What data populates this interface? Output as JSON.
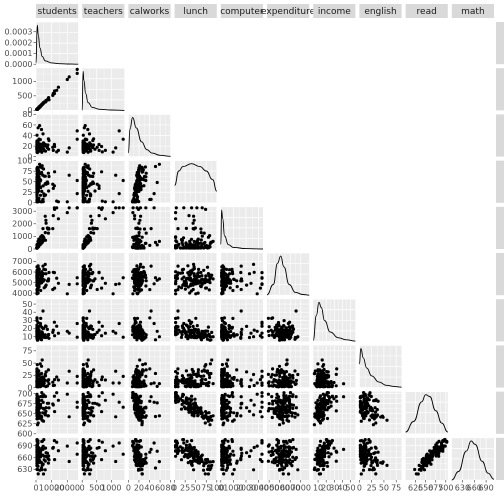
{
  "chart_data": {
    "type": "scatter",
    "title": "",
    "xlabel": "",
    "ylabel": "",
    "grid": true,
    "diagonal": "density",
    "lower": "scatter",
    "variables": [
      {
        "name": "students",
        "range": [
          0,
          27000
        ],
        "yrange": [
          0,
          0.00039
        ],
        "yticks": [
          0.0,
          0.0001,
          0.0002,
          0.0003
        ],
        "ytick_labels": [
          "0.0000",
          "0.0001",
          "0.0002",
          "0.0003"
        ],
        "xticks": [
          0,
          10000,
          20000
        ],
        "xtick_labels": [
          "0",
          "10000",
          "20000"
        ]
      },
      {
        "name": "teachers",
        "range": [
          0,
          1450
        ],
        "yticks": [
          0,
          500,
          1000,
          1500
        ],
        "ytick_labels": [
          "0",
          "500",
          "1000",
          "1500"
        ],
        "xticks": [
          0,
          500,
          1000
        ],
        "xtick_labels": [
          "0",
          "500",
          "1000"
        ]
      },
      {
        "name": "calworks",
        "range": [
          0,
          80
        ],
        "yticks": [
          0,
          20,
          40,
          60,
          80
        ],
        "ytick_labels": [
          "0",
          "20",
          "40",
          "60",
          "80"
        ],
        "xticks": [
          0,
          20,
          40,
          60,
          80
        ],
        "xtick_labels": [
          "0",
          "20",
          "40",
          "60",
          "80"
        ]
      },
      {
        "name": "lunch",
        "range": [
          0,
          100
        ],
        "yticks": [
          0,
          25,
          50,
          75,
          100
        ],
        "ytick_labels": [
          "0",
          "25",
          "50",
          "75",
          "100"
        ],
        "xticks": [
          0,
          25,
          50,
          75,
          100
        ],
        "xtick_labels": [
          "0",
          "25",
          "50",
          "75",
          "100"
        ]
      },
      {
        "name": "computer",
        "range": [
          0,
          3350
        ],
        "yticks": [
          0,
          1000,
          2000,
          3000
        ],
        "ytick_labels": [
          "0",
          "1000",
          "2000",
          "3000"
        ],
        "xticks": [
          0,
          1000,
          2000,
          3000
        ],
        "xtick_labels": [
          "0",
          "1000",
          "2000",
          "3000"
        ]
      },
      {
        "name": "expenditure",
        "range": [
          3800,
          7800
        ],
        "yticks": [
          4000,
          5000,
          6000,
          7000
        ],
        "ytick_labels": [
          "4000",
          "5000",
          "6000",
          "7000"
        ],
        "xticks": [
          4000,
          5000,
          6000,
          7000
        ],
        "xtick_labels": [
          "4000",
          "5000",
          "6000",
          "7000"
        ]
      },
      {
        "name": "income",
        "range": [
          4,
          56
        ],
        "yticks": [
          10,
          20,
          30,
          40,
          50
        ],
        "ytick_labels": [
          "10",
          "20",
          "30",
          "40",
          "50"
        ],
        "xticks": [
          10,
          20,
          30,
          40,
          50
        ],
        "xtick_labels": [
          "10",
          "20",
          "30",
          "40",
          "50"
        ]
      },
      {
        "name": "english",
        "range": [
          0,
          86
        ],
        "yticks": [
          0,
          25,
          50,
          75
        ],
        "ytick_labels": [
          "0",
          "25",
          "50",
          "75"
        ],
        "xticks": [
          0,
          25,
          50,
          75
        ],
        "xtick_labels": [
          "0",
          "25",
          "50",
          "75"
        ]
      },
      {
        "name": "read",
        "range": [
          600,
          705
        ],
        "yticks": [
          600,
          625,
          650,
          675,
          700
        ],
        "ytick_labels": [
          "600",
          "625",
          "650",
          "675",
          "700"
        ],
        "xticks": [
          625,
          650,
          675,
          700
        ],
        "xtick_labels": [
          "625",
          "650",
          "675",
          "700"
        ]
      },
      {
        "name": "math",
        "range": [
          603,
          710
        ],
        "yticks": [
          630,
          660,
          690
        ],
        "ytick_labels": [
          "630",
          "660",
          "690"
        ],
        "xticks": [
          630,
          660,
          690
        ],
        "xtick_labels": [
          "630",
          "660",
          "690"
        ]
      }
    ],
    "density_curves": [
      [
        [
          0,
          1e-05
        ],
        [
          800,
          0.00036
        ],
        [
          1500,
          0.00027
        ],
        [
          2500,
          0.00015
        ],
        [
          4000,
          7e-05
        ],
        [
          6000,
          3e-05
        ],
        [
          10000,
          1.2e-05
        ],
        [
          15000,
          5e-06
        ],
        [
          20000,
          2e-06
        ],
        [
          27000,
          0.0
        ]
      ],
      [
        [
          0,
          0.0
        ],
        [
          30,
          0.0065
        ],
        [
          60,
          0.005
        ],
        [
          120,
          0.0028
        ],
        [
          200,
          0.0013
        ],
        [
          350,
          0.0005
        ],
        [
          600,
          0.00018
        ],
        [
          1000,
          6e-05
        ],
        [
          1450,
          0.0
        ]
      ],
      [
        [
          0,
          0.004
        ],
        [
          3,
          0.032
        ],
        [
          8,
          0.045
        ],
        [
          15,
          0.033
        ],
        [
          25,
          0.017
        ],
        [
          35,
          0.008
        ],
        [
          45,
          0.004
        ],
        [
          60,
          0.0015
        ],
        [
          80,
          0.0003
        ]
      ],
      [
        [
          0,
          0.006
        ],
        [
          10,
          0.011
        ],
        [
          20,
          0.0125
        ],
        [
          40,
          0.0135
        ],
        [
          60,
          0.0125
        ],
        [
          75,
          0.011
        ],
        [
          90,
          0.008
        ],
        [
          100,
          0.004
        ]
      ],
      [
        [
          0,
          0.0004
        ],
        [
          60,
          0.0036
        ],
        [
          150,
          0.0028
        ],
        [
          300,
          0.0012
        ],
        [
          600,
          0.0004
        ],
        [
          1000,
          0.00015
        ],
        [
          2000,
          4e-05
        ],
        [
          3350,
          0.0
        ]
      ],
      [
        [
          3800,
          1e-05
        ],
        [
          4400,
          0.0003
        ],
        [
          4800,
          0.0009
        ],
        [
          5100,
          0.0011
        ],
        [
          5400,
          0.0008
        ],
        [
          5900,
          0.0003
        ],
        [
          6500,
          8e-05
        ],
        [
          7200,
          2e-05
        ],
        [
          7800,
          0.0
        ]
      ],
      [
        [
          4,
          0.002
        ],
        [
          8,
          0.05
        ],
        [
          11,
          0.075
        ],
        [
          14,
          0.065
        ],
        [
          18,
          0.04
        ],
        [
          25,
          0.018
        ],
        [
          35,
          0.007
        ],
        [
          45,
          0.003
        ],
        [
          56,
          0.0005
        ]
      ],
      [
        [
          0,
          0.03
        ],
        [
          3,
          0.05
        ],
        [
          8,
          0.038
        ],
        [
          15,
          0.025
        ],
        [
          25,
          0.015
        ],
        [
          40,
          0.007
        ],
        [
          55,
          0.003
        ],
        [
          70,
          0.0015
        ],
        [
          86,
          0.0005
        ]
      ],
      [
        [
          600,
          0.001
        ],
        [
          620,
          0.007
        ],
        [
          640,
          0.018
        ],
        [
          650,
          0.022
        ],
        [
          660,
          0.021
        ],
        [
          675,
          0.013
        ],
        [
          690,
          0.006
        ],
        [
          705,
          0.001
        ]
      ],
      [
        [
          603,
          0.0
        ],
        [
          620,
          0.005
        ],
        [
          640,
          0.017
        ],
        [
          652,
          0.023
        ],
        [
          662,
          0.021
        ],
        [
          680,
          0.011
        ],
        [
          695,
          0.004
        ],
        [
          710,
          0.0005
        ]
      ]
    ],
    "pairwise_points": {
      "sample_size": 120,
      "note": "lower-triangle panels show scatter of row variable (y) vs column variable (x)"
    }
  }
}
